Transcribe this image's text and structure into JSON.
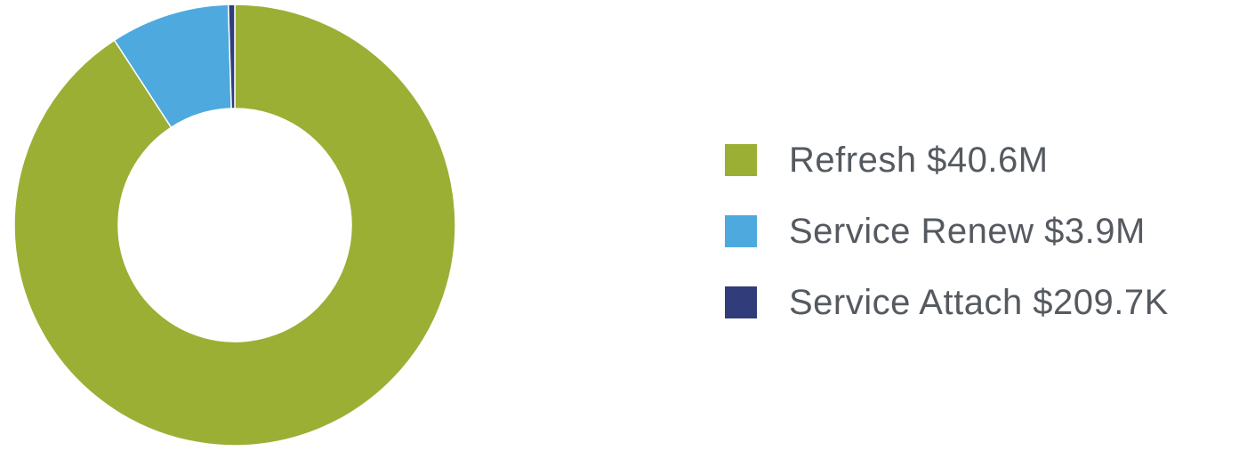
{
  "chart_data": {
    "type": "pie",
    "variant": "donut",
    "title": "",
    "legend_position": "right",
    "slices": [
      {
        "label": "Refresh $40.6M",
        "name": "Refresh",
        "value": 40.6,
        "unit": "M",
        "color": "#9baf35"
      },
      {
        "label": "Service Renew $3.9M",
        "name": "Service Renew",
        "value": 3.9,
        "unit": "M",
        "color": "#4ea9de"
      },
      {
        "label": "Service Attach $209.7K",
        "name": "Service Attach",
        "value": 0.2097,
        "unit": "M",
        "color": "#313d7a"
      }
    ]
  }
}
